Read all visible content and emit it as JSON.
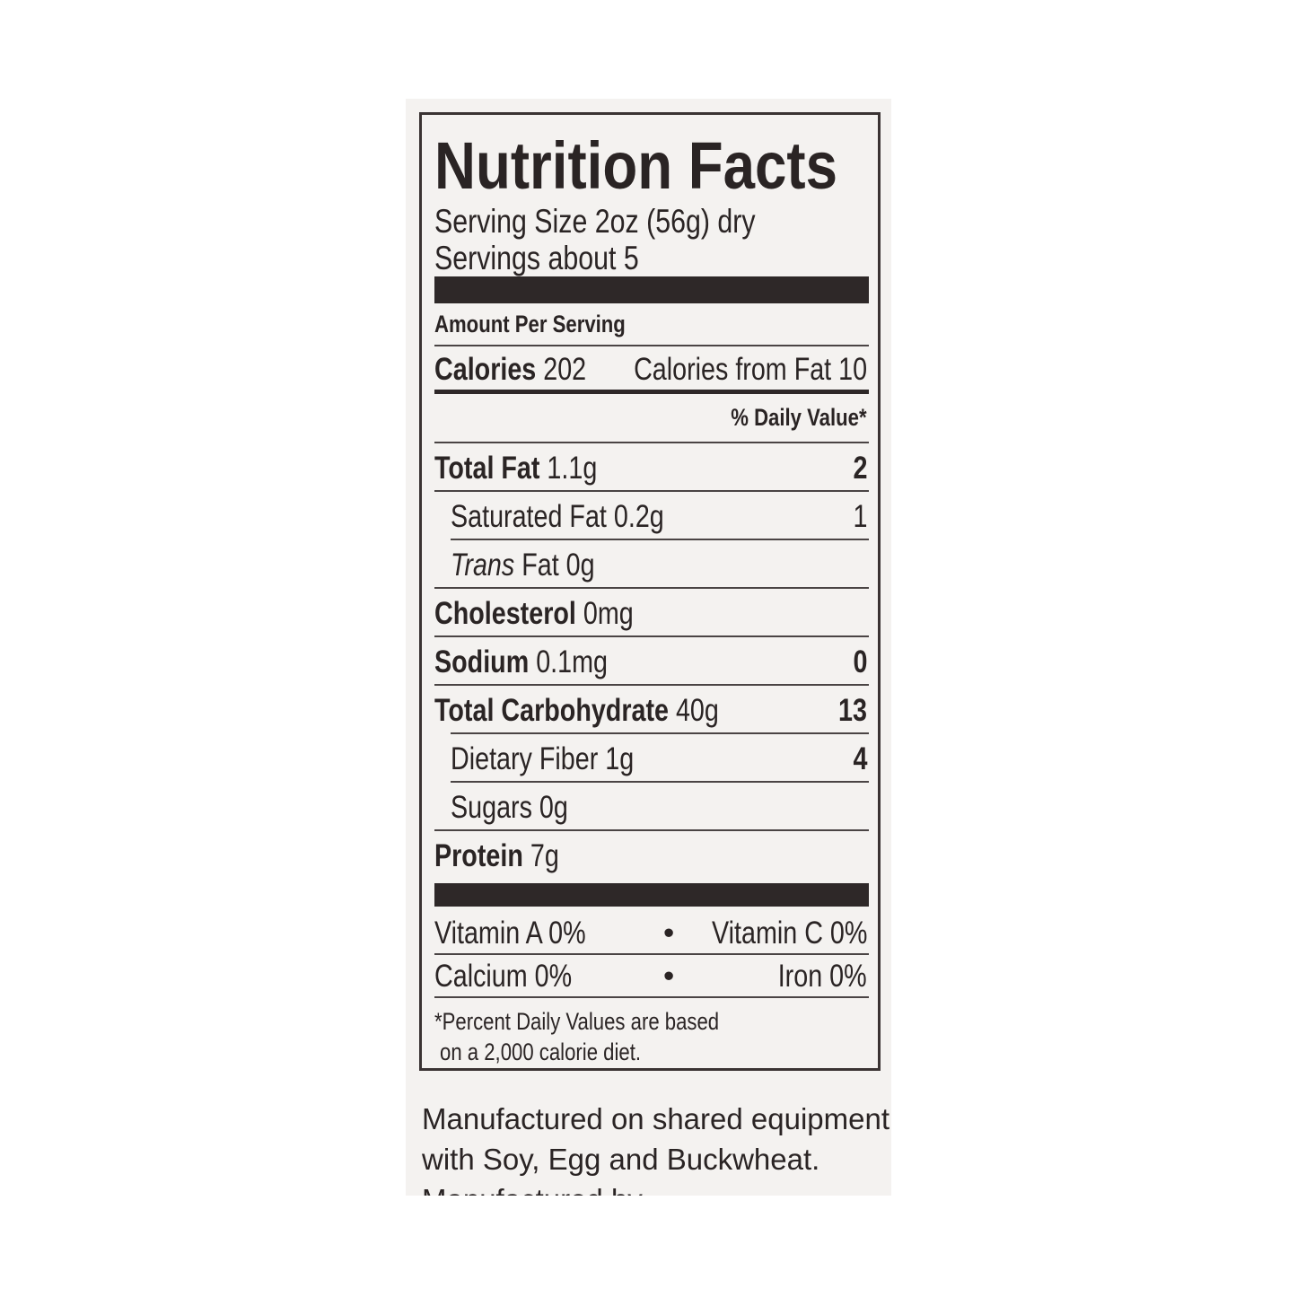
{
  "label": {
    "title": "Nutrition Facts",
    "serving_size": "Serving Size 2oz (56g) dry",
    "servings": "Servings about 5",
    "amount_per_serving": "Amount Per Serving",
    "calories_label": "Calories",
    "calories_value": "202",
    "calories_from_fat": "Calories from Fat 10",
    "daily_value_header": "% Daily Value*",
    "nutrients": [
      {
        "name": "Total Fat",
        "amount": "1.1g",
        "dv": "2"
      },
      {
        "name": "Saturated Fat",
        "amount": "0.2g",
        "dv": "1"
      },
      {
        "name": "Trans",
        "name2": "Fat",
        "amount": "0g",
        "dv": ""
      },
      {
        "name": "Cholesterol",
        "amount": "0mg",
        "dv": ""
      },
      {
        "name": "Sodium",
        "amount": "0.1mg",
        "dv": "0"
      },
      {
        "name": "Total Carbohydrate",
        "amount": "40g",
        "dv": "13"
      },
      {
        "name": "Dietary Fiber",
        "amount": "1g",
        "dv": "4"
      },
      {
        "name": "Sugars",
        "amount": "0g",
        "dv": ""
      },
      {
        "name": "Protein",
        "amount": "7g",
        "dv": ""
      }
    ],
    "vitamins": [
      {
        "left": "Vitamin A 0%",
        "right": "Vitamin C 0%"
      },
      {
        "left": "Calcium 0%",
        "right": "Iron 0%"
      }
    ],
    "separator": "•",
    "footnote_1": "*Percent Daily Values are based",
    "footnote_2": "on a 2,000 calorie diet."
  },
  "allergen_1": "Manufactured on shared equipment",
  "allergen_2": "with Soy, Egg and Buckwheat.",
  "cut_off_text": "Manufactured by"
}
